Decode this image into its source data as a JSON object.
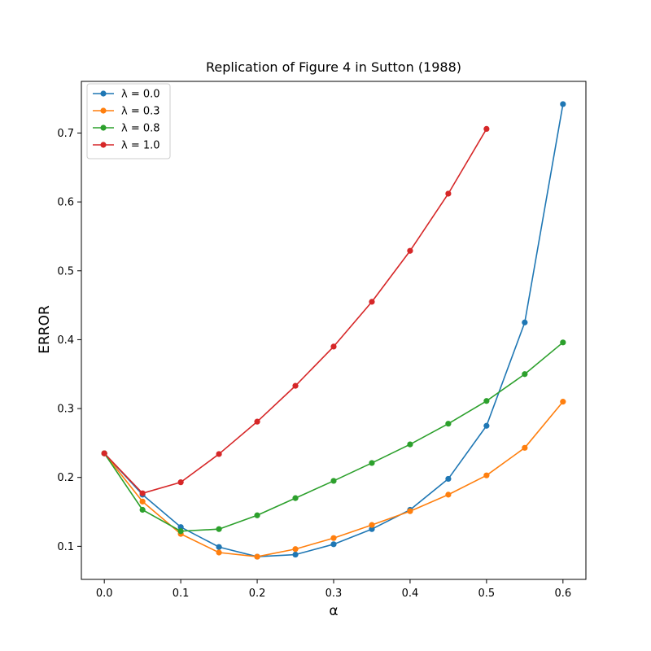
{
  "chart_data": {
    "type": "line",
    "title": "Replication of Figure 4 in Sutton (1988)",
    "xlabel": "α",
    "ylabel": "ERROR",
    "xlim": [
      -0.03,
      0.63
    ],
    "ylim": [
      0.052,
      0.775
    ],
    "xticks": [
      0.0,
      0.1,
      0.2,
      0.3,
      0.4,
      0.5,
      0.6
    ],
    "xtick_labels": [
      "0.0",
      "0.1",
      "0.2",
      "0.3",
      "0.4",
      "0.5",
      "0.6"
    ],
    "yticks": [
      0.1,
      0.2,
      0.3,
      0.4,
      0.5,
      0.6,
      0.7
    ],
    "ytick_labels": [
      "0.1",
      "0.2",
      "0.3",
      "0.4",
      "0.5",
      "0.6",
      "0.7"
    ],
    "grid": false,
    "legend_position": "top-left",
    "series": [
      {
        "name": "λ = 0.0",
        "color": "#1f77b4",
        "x": [
          0.0,
          0.05,
          0.1,
          0.15,
          0.2,
          0.25,
          0.3,
          0.35,
          0.4,
          0.45,
          0.5,
          0.55,
          0.6
        ],
        "y": [
          0.235,
          0.175,
          0.128,
          0.099,
          0.085,
          0.088,
          0.103,
          0.125,
          0.153,
          0.198,
          0.275,
          0.425,
          0.742
        ]
      },
      {
        "name": "λ = 0.3",
        "color": "#ff7f0e",
        "x": [
          0.0,
          0.05,
          0.1,
          0.15,
          0.2,
          0.25,
          0.3,
          0.35,
          0.4,
          0.45,
          0.5,
          0.55,
          0.6
        ],
        "y": [
          0.235,
          0.165,
          0.118,
          0.091,
          0.085,
          0.096,
          0.112,
          0.131,
          0.151,
          0.175,
          0.203,
          0.243,
          0.31
        ]
      },
      {
        "name": "λ = 0.8",
        "color": "#2ca02c",
        "x": [
          0.0,
          0.05,
          0.1,
          0.15,
          0.2,
          0.25,
          0.3,
          0.35,
          0.4,
          0.45,
          0.5,
          0.55,
          0.6
        ],
        "y": [
          0.235,
          0.153,
          0.122,
          0.125,
          0.145,
          0.17,
          0.195,
          0.221,
          0.248,
          0.278,
          0.311,
          0.35,
          0.396
        ]
      },
      {
        "name": "λ = 1.0",
        "color": "#d62728",
        "x": [
          0.0,
          0.05,
          0.1,
          0.15,
          0.2,
          0.25,
          0.3,
          0.35,
          0.4,
          0.45,
          0.5
        ],
        "y": [
          0.235,
          0.177,
          0.193,
          0.234,
          0.281,
          0.333,
          0.39,
          0.455,
          0.529,
          0.612,
          0.706
        ]
      }
    ]
  }
}
